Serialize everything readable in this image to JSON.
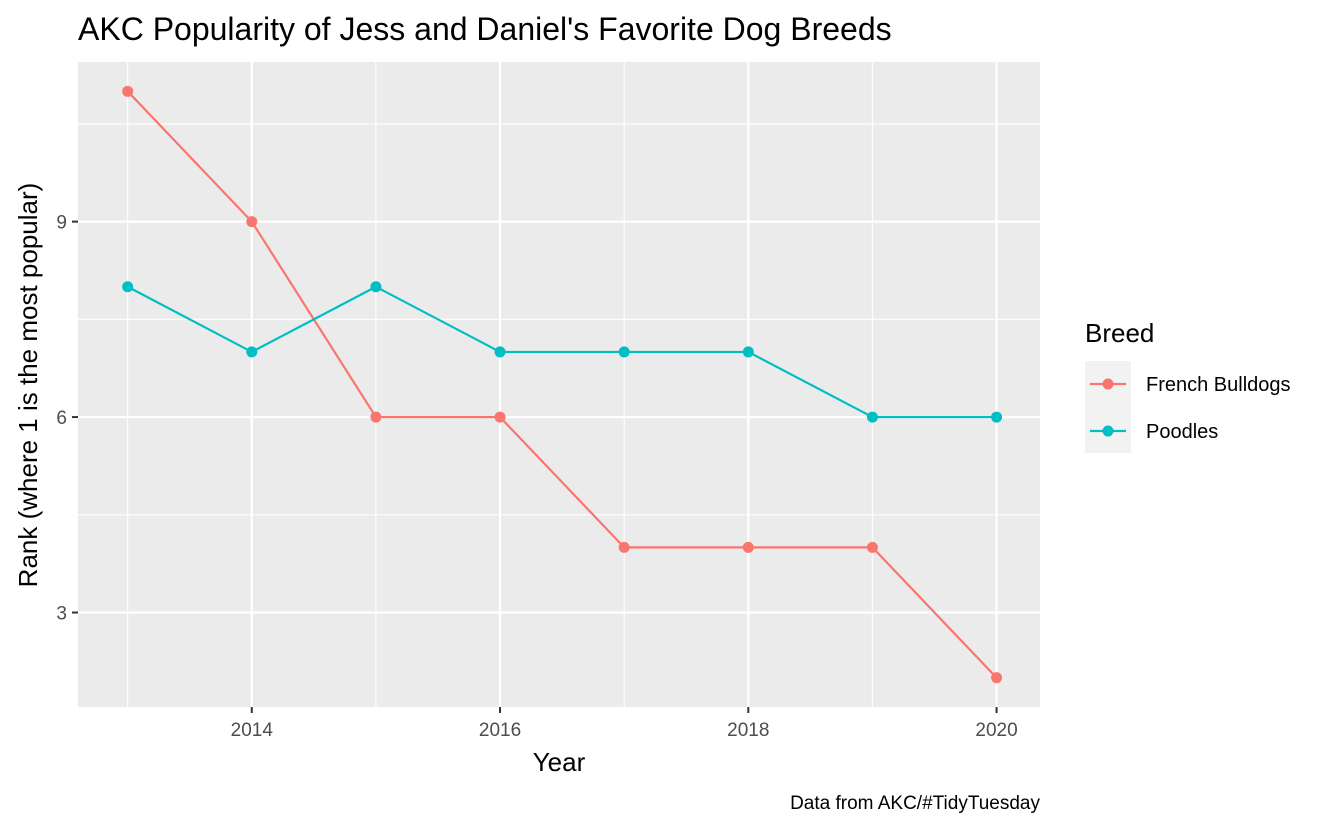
{
  "chart_data": {
    "type": "line",
    "title": "AKC Popularity of Jess and Daniel's Favorite Dog Breeds",
    "xlabel": "Year",
    "ylabel": "Rank (where 1 is the most popular)",
    "caption": "Data from AKC/#TidyTuesday",
    "x": [
      2013,
      2014,
      2015,
      2016,
      2017,
      2018,
      2019,
      2020
    ],
    "x_ticks": [
      "2014",
      "2016",
      "2018",
      "2020"
    ],
    "y_ticks": [
      "3",
      "6",
      "9"
    ],
    "xlim": [
      2012.6,
      2020.35
    ],
    "ylim": [
      1.55,
      11.45
    ],
    "grid": true,
    "legend": {
      "title": "Breed",
      "position": "right"
    },
    "series": [
      {
        "name": "French Bulldogs",
        "color": "#F8766D",
        "values": [
          11,
          9,
          6,
          6,
          4,
          4,
          4,
          2
        ]
      },
      {
        "name": "Poodles",
        "color": "#00BFC4",
        "values": [
          8,
          7,
          8,
          7,
          7,
          7,
          6,
          6
        ]
      }
    ]
  }
}
